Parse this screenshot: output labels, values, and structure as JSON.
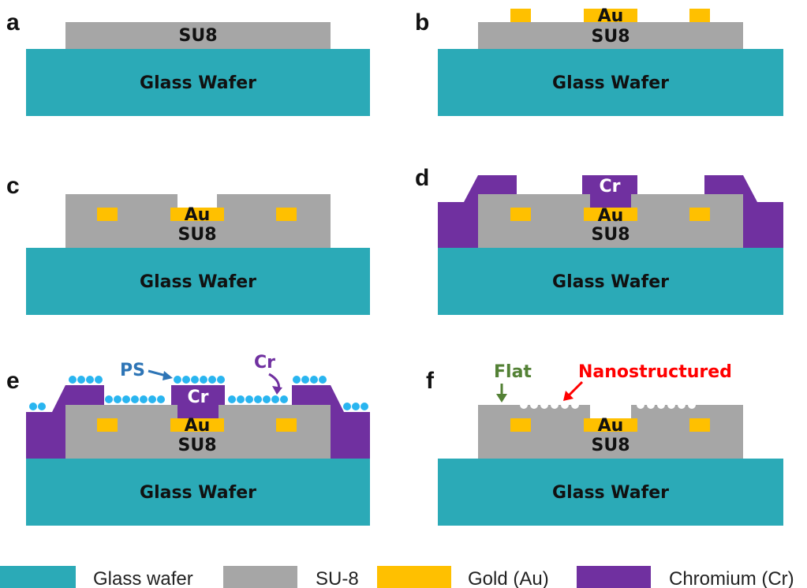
{
  "colors": {
    "glass": "#2BAAB7",
    "su8": "#A6A6A6",
    "gold": "#FFC000",
    "chromium": "#7030A0",
    "ps": "#29B5F0",
    "ps_label": "#2E75B6",
    "flat": "#538135",
    "nano": "#FF0000"
  },
  "panels": {
    "a": {
      "letter": "a",
      "su8": "SU8",
      "glass": "Glass Wafer"
    },
    "b": {
      "letter": "b",
      "au": "Au",
      "su8": "SU8",
      "glass": "Glass Wafer"
    },
    "c": {
      "letter": "c",
      "au": "Au",
      "su8": "SU8",
      "glass": "Glass Wafer"
    },
    "d": {
      "letter": "d",
      "cr": "Cr",
      "au": "Au",
      "su8": "SU8",
      "glass": "Glass Wafer"
    },
    "e": {
      "letter": "e",
      "ps": "PS",
      "cr_arrow": "Cr",
      "cr": "Cr",
      "au": "Au",
      "su8": "SU8",
      "glass": "Glass Wafer"
    },
    "f": {
      "letter": "f",
      "flat": "Flat",
      "nano": "Nanostructured",
      "au": "Au",
      "su8": "SU8",
      "glass": "Glass Wafer"
    }
  },
  "legend": [
    {
      "label": "Glass wafer",
      "color": "#2BAAB7"
    },
    {
      "label": "SU-8",
      "color": "#A6A6A6"
    },
    {
      "label": "Gold (Au)",
      "color": "#FFC000"
    },
    {
      "label": "Chromium (Cr)",
      "color": "#7030A0"
    }
  ]
}
